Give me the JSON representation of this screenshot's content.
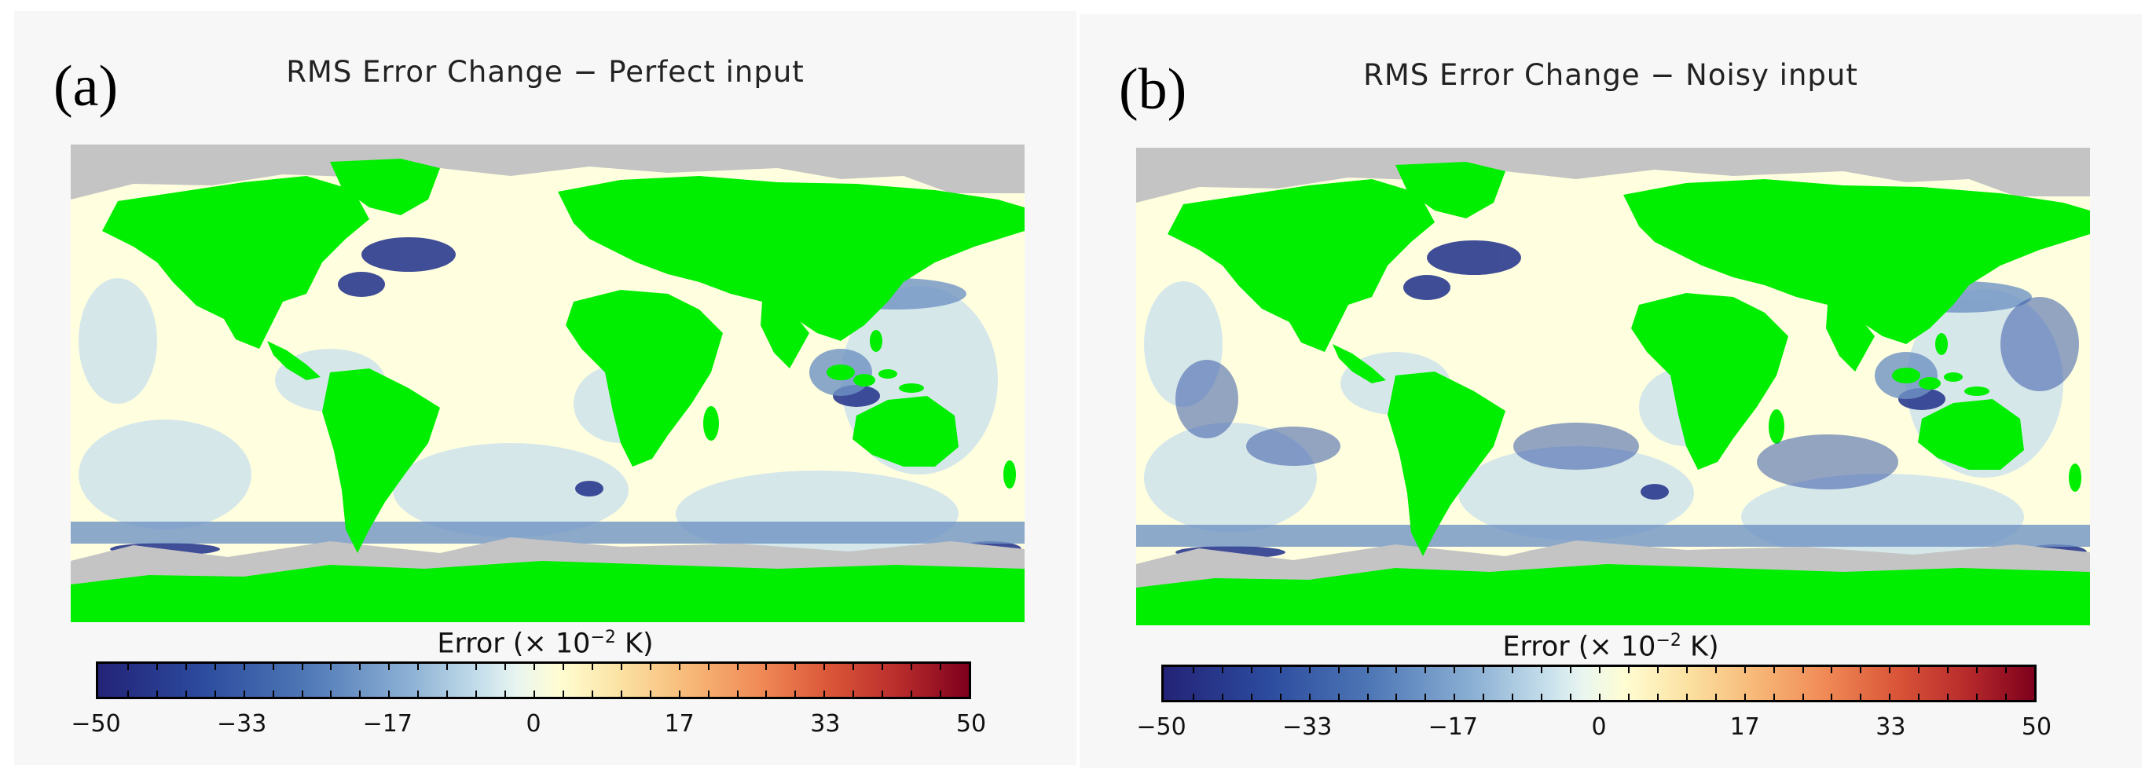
{
  "panels": [
    {
      "letter": "(a)",
      "title": "RMS Error Change − Perfect input",
      "colorbar_label_prefix": "Error (× 10",
      "colorbar_label_exp": "−2",
      "colorbar_label_suffix": " K)",
      "ticks": [
        "−50",
        "−33",
        "−17",
        "0",
        "17",
        "33",
        "50"
      ]
    },
    {
      "letter": "(b)",
      "title": "RMS Error Change − Noisy input",
      "colorbar_label_prefix": "Error (× 10",
      "colorbar_label_exp": "−2",
      "colorbar_label_suffix": " K)",
      "ticks": [
        "−50",
        "−33",
        "−17",
        "0",
        "17",
        "33",
        "50"
      ]
    }
  ],
  "colors": {
    "land": "#00ee00",
    "ice": "#c4c4c4",
    "ocean_neutral": "#ffffdf",
    "ocean_negative": "#2b3a8f",
    "colorbar_min": "#232377",
    "colorbar_max": "#7e001c"
  },
  "colorbar_range": [
    -50,
    50
  ]
}
